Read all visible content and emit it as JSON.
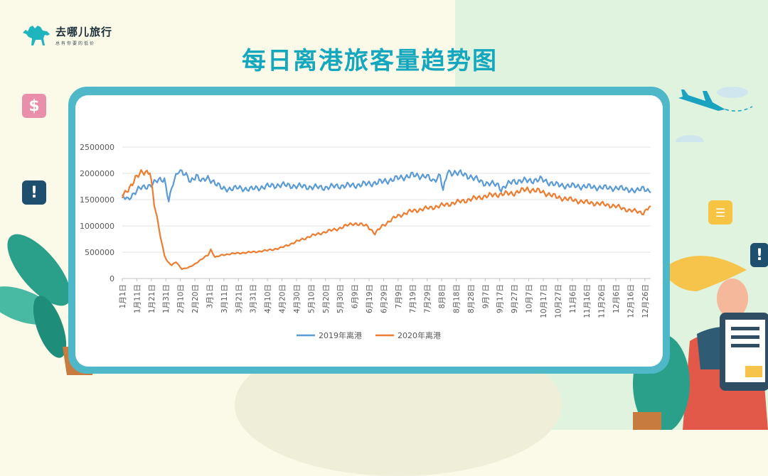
{
  "brand": {
    "name": "去哪儿旅行",
    "slogan": "总有你要的低价"
  },
  "title": "每日离港旅客量趋势图",
  "colors": {
    "series_2019": "#5b9bd5",
    "series_2020": "#ed7d31",
    "title": "#14a7bd",
    "frame": "#4fb8c8"
  },
  "icons": [
    "camel-logo-icon",
    "dollar-icon",
    "alert-icon",
    "airplane-icon",
    "document-icon",
    "cactus-icon",
    "person-icon"
  ],
  "chart_data": {
    "type": "line",
    "title": "",
    "xlabel": "",
    "ylabel": "",
    "ylim": [
      0,
      2500000
    ],
    "yticks": [
      0,
      500000,
      1000000,
      1500000,
      2000000,
      2500000
    ],
    "ytick_labels": [
      "0",
      "500000",
      "1000000",
      "1500000",
      "2000000",
      "2500000"
    ],
    "xtick_labels": [
      "1月1日",
      "1月11日",
      "1月21日",
      "1月31日",
      "2月10日",
      "2月20日",
      "3月1日",
      "3月11日",
      "3月21日",
      "3月31日",
      "4月10日",
      "4月20日",
      "4月30日",
      "5月10日",
      "5月20日",
      "5月30日",
      "6月9日",
      "6月19日",
      "6月29日",
      "7月9日",
      "7月19日",
      "7月29日",
      "8月8日",
      "8月18日",
      "8月28日",
      "9月7日",
      "9月17日",
      "9月27日",
      "10月7日",
      "10月17日",
      "10月27日",
      "11月6日",
      "11月16日",
      "11月26日",
      "12月6日",
      "12月16日",
      "12月26日"
    ],
    "x_unit": "day of year (1 = 1月1日)",
    "x_range": [
      1,
      365
    ],
    "grid": "horizontal",
    "legend": "bottom",
    "series": [
      {
        "name": "2019年离港",
        "x": [
          1,
          5,
          8,
          12,
          18,
          25,
          30,
          33,
          36,
          40,
          44,
          48,
          52,
          56,
          60,
          64,
          70,
          80,
          90,
          100,
          110,
          120,
          130,
          140,
          150,
          160,
          170,
          180,
          190,
          200,
          210,
          215,
          220,
          222,
          225,
          230,
          240,
          250,
          260,
          262,
          270,
          280,
          290,
          300,
          310,
          320,
          330,
          340,
          350,
          355,
          360,
          365
        ],
        "y": [
          1550000,
          1500000,
          1600000,
          1700000,
          1750000,
          1850000,
          1900000,
          1480000,
          1800000,
          2080000,
          2000000,
          1820000,
          1980000,
          1850000,
          1900000,
          1850000,
          1700000,
          1720000,
          1700000,
          1750000,
          1780000,
          1760000,
          1740000,
          1730000,
          1760000,
          1770000,
          1800000,
          1840000,
          1900000,
          1960000,
          1950000,
          1850000,
          1980000,
          1650000,
          2020000,
          2020000,
          1950000,
          1820000,
          1780000,
          1700000,
          1850000,
          1860000,
          1880000,
          1780000,
          1760000,
          1750000,
          1730000,
          1720000,
          1700000,
          1650000,
          1740000,
          1630000
        ]
      },
      {
        "name": "2020年离港",
        "x": [
          1,
          5,
          10,
          15,
          20,
          23,
          26,
          28,
          30,
          32,
          35,
          38,
          42,
          46,
          50,
          55,
          60,
          62,
          65,
          70,
          80,
          90,
          100,
          110,
          120,
          130,
          140,
          150,
          160,
          170,
          175,
          180,
          190,
          200,
          210,
          220,
          230,
          240,
          250,
          260,
          270,
          280,
          290,
          300,
          310,
          320,
          330,
          340,
          350,
          360,
          365
        ],
        "y": [
          1550000,
          1700000,
          1900000,
          2030000,
          2040000,
          1400000,
          1000000,
          700000,
          450000,
          320000,
          250000,
          320000,
          180000,
          200000,
          260000,
          350000,
          450000,
          550000,
          400000,
          450000,
          480000,
          500000,
          530000,
          580000,
          690000,
          800000,
          880000,
          950000,
          1050000,
          1000000,
          850000,
          1000000,
          1180000,
          1280000,
          1330000,
          1380000,
          1440000,
          1500000,
          1560000,
          1600000,
          1620000,
          1700000,
          1650000,
          1550000,
          1500000,
          1450000,
          1420000,
          1380000,
          1300000,
          1250000,
          1380000
        ]
      }
    ]
  }
}
